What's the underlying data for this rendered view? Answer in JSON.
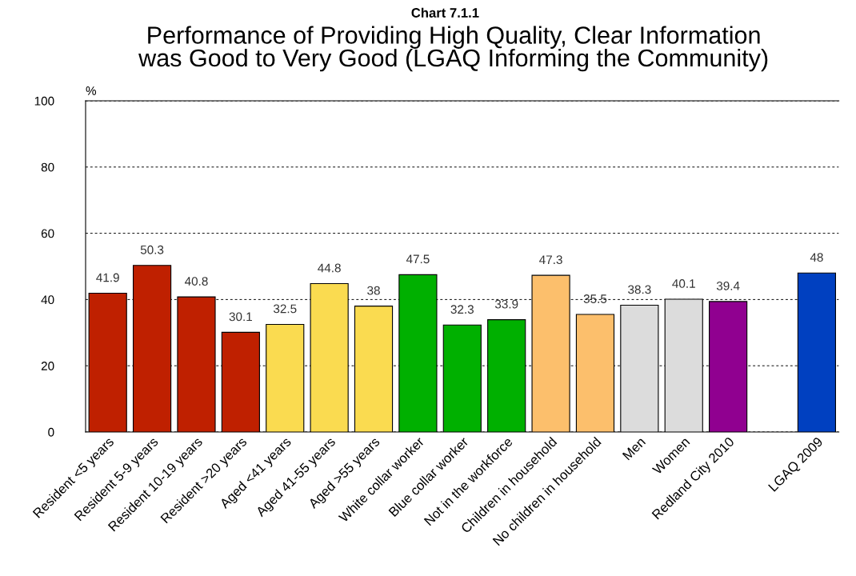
{
  "chart_data": {
    "type": "bar",
    "title": "Chart 7.1.1",
    "subtitle": "Performance of Providing High Quality, Clear Information\nwas Good to Very Good (LGAQ Informing the Community)",
    "ylabel": "%",
    "categories": [
      "Resident <5 years",
      "Resident 5-9 years",
      "Resident 10-19 years",
      "Resident >20 years",
      "Aged <41 years",
      "Aged 41-55 years",
      "Aged >55 years",
      "White collar worker",
      "Blue collar worker",
      "Not in the workforce",
      "Children in household",
      "No children in household",
      "Men",
      "Women",
      "Redland City 2010",
      null,
      "LGAQ 2009"
    ],
    "values": [
      41.9,
      50.3,
      40.8,
      30.1,
      32.5,
      44.8,
      38,
      47.5,
      32.3,
      33.9,
      47.3,
      35.5,
      38.3,
      40.1,
      39.4,
      null,
      48
    ],
    "colors": [
      "#bf2000",
      "#bf2000",
      "#bf2000",
      "#bf2000",
      "#fadb50",
      "#fadb50",
      "#fadb50",
      "#00b000",
      "#00b000",
      "#00b000",
      "#fcbf6c",
      "#fcbf6c",
      "#dcdcdc",
      "#dcdcdc",
      "#900090",
      "#ffffff",
      "#0040c0"
    ],
    "ylim": [
      0,
      100
    ],
    "yticks": [
      0,
      20,
      40,
      60,
      80,
      100
    ],
    "grid": "y",
    "data_labels": true
  }
}
